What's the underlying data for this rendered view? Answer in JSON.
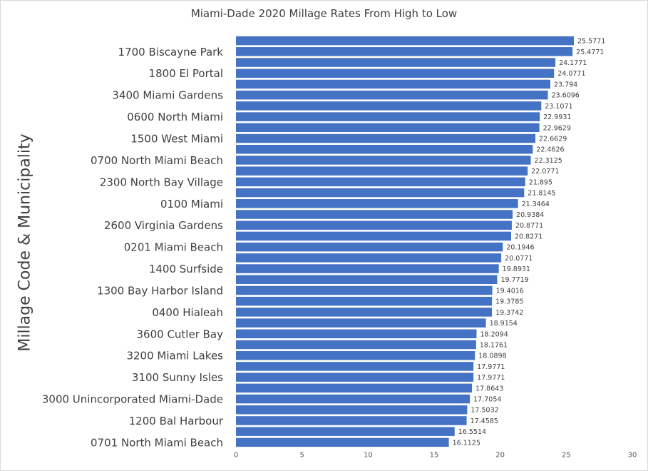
{
  "chart_data": {
    "type": "bar",
    "orientation": "horizontal",
    "title": "Miami-Dade 2020 Millage Rates From High to Low",
    "xlabel": "",
    "ylabel": "Millage Code & Municipality",
    "xlim": [
      0,
      30
    ],
    "xticks": [
      "0",
      "5",
      "10",
      "15",
      "20",
      "25",
      "30"
    ],
    "grid": false,
    "bar_color": "#4472c4",
    "categories": [
      "",
      "1700 Biscayne Park",
      "",
      "1800 El Portal",
      "",
      "3400 Miami Gardens",
      "",
      "0600 North Miami",
      "",
      "1500 West Miami",
      "",
      "0700 North Miami Beach",
      "",
      "2300 North Bay Village",
      "",
      "0100 Miami",
      "",
      "2600 Virginia Gardens",
      "",
      "0201 Miami Beach",
      "",
      "1400 Surfside",
      "",
      "1300 Bay Harbor Island",
      "",
      "0400 Hialeah",
      "",
      "3600 Cutler Bay",
      "",
      "3200 Miami Lakes",
      "",
      "3100 Sunny Isles",
      "",
      "3000 Unincorporated Miami-Dade",
      "",
      "1200 Bal Harbour",
      "",
      "0701 North Miami Beach"
    ],
    "values": [
      25.5771,
      25.4771,
      24.1771,
      24.0771,
      23.794,
      23.6096,
      23.1071,
      22.9931,
      22.9629,
      22.6629,
      22.4626,
      22.3125,
      22.0771,
      21.895,
      21.8145,
      21.3464,
      20.9384,
      20.8771,
      20.8271,
      20.1946,
      20.0771,
      19.8931,
      19.7719,
      19.4016,
      19.3785,
      19.3742,
      18.9154,
      18.2094,
      18.1761,
      18.0898,
      17.9771,
      17.9771,
      17.8643,
      17.7054,
      17.5032,
      17.4585,
      16.5514,
      16.1125
    ],
    "data_labels": [
      "25.5771",
      "25.4771",
      "24.1771",
      "24.0771",
      "23.794",
      "23.6096",
      "23.1071",
      "22.9931",
      "22.9629",
      "22.6629",
      "22.4626",
      "22.3125",
      "22.0771",
      "21.895",
      "21.8145",
      "21.3464",
      "20.9384",
      "20.8771",
      "20.8271",
      "20.1946",
      "20.0771",
      "19.8931",
      "19.7719",
      "19.4016",
      "19.3785",
      "19.3742",
      "18.9154",
      "18.2094",
      "18.1761",
      "18.0898",
      "17.9771",
      "17.9771",
      "17.8643",
      "17.7054",
      "17.5032",
      "17.4585",
      "16.5514",
      "16.1125"
    ]
  }
}
